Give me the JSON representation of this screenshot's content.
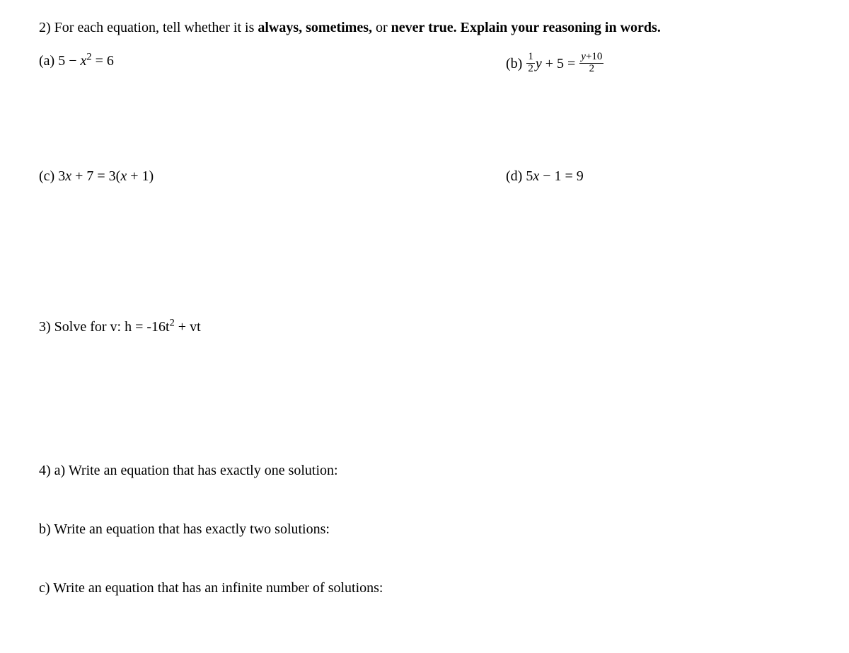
{
  "q2": {
    "prompt_prefix": "2) For each equation, tell whether it is ",
    "bold1": "always, sometimes,",
    "mid": " or ",
    "bold2": "never true. Explain your reasoning in words.",
    "a_label": "(a) ",
    "a_lhs_const": "5 − ",
    "a_var": "x",
    "a_exp": "2",
    "a_rhs": " = 6",
    "b_label": "(b) ",
    "b_frac1_num": "1",
    "b_frac1_den": "2",
    "b_var": "y",
    "b_mid": " + 5 = ",
    "b_frac2_num_var": "y",
    "b_frac2_num_rest": "+10",
    "b_frac2_den": "2",
    "c_label": "(c)  ",
    "c_lhs": "3",
    "c_var1": "x",
    "c_mid": " + 7 = 3(",
    "c_var2": "x",
    "c_end": " + 1)",
    "d_label": "(d)  ",
    "d_lhs": "5",
    "d_var": "x",
    "d_rest": " − 1 = 9"
  },
  "q3": {
    "prompt": "3) Solve for v:   ",
    "eq_h": "h = -16t",
    "eq_exp": "2",
    "eq_rest": " + vt"
  },
  "q4": {
    "a": "4) a) Write an equation that has exactly one solution:",
    "b": "b) Write an equation that has exactly two solutions:",
    "c": "c) Write an equation that has an infinite number of solutions:"
  }
}
